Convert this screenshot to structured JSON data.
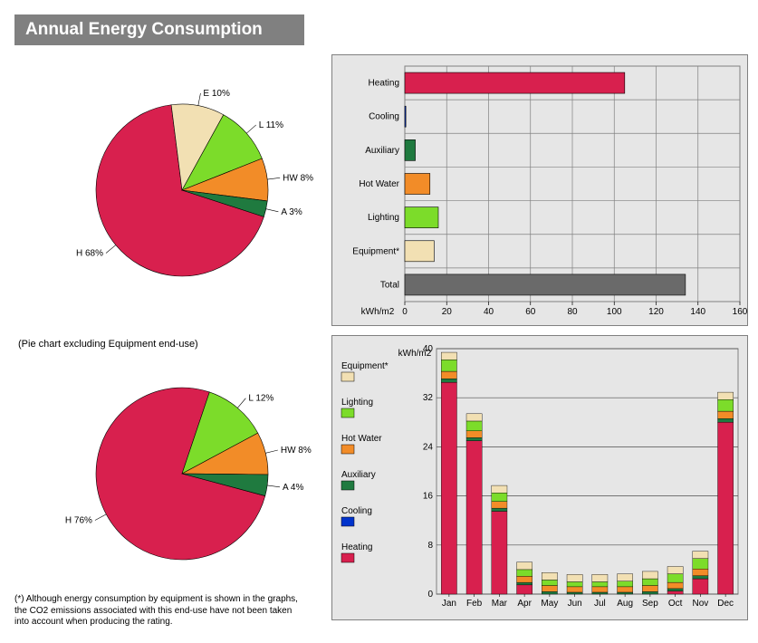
{
  "title": "Annual Energy Consumption",
  "colors": {
    "heating": "#d8204e",
    "cooling": "#0033cc",
    "auxiliary": "#1f7a3f",
    "hotwater": "#f28c28",
    "lighting": "#7cdc2a",
    "equipment": "#f2e0b3",
    "total": "#6a6a6a",
    "panel_bg": "#e6e6e6",
    "panel_border": "#808080",
    "grid_line": "#808080",
    "minor_grid": "#4f4f4f"
  },
  "pie1": {
    "labels": [
      "H 68%",
      "E 10%",
      "L 11%",
      "HW 8%",
      "A 3%"
    ],
    "values": [
      68,
      10,
      11,
      8,
      3
    ],
    "slice_colors": [
      "#d8204e",
      "#f2e0b3",
      "#7cdc2a",
      "#f28c28",
      "#1f7a3f"
    ],
    "start_angle_deg": 108
  },
  "pie2": {
    "caption": "(Pie chart excluding Equipment end-use)",
    "labels": [
      "H 76%",
      "L 12%",
      "HW 8%",
      "A 4%"
    ],
    "values": [
      76,
      12,
      8,
      4
    ],
    "slice_colors": [
      "#d8204e",
      "#7cdc2a",
      "#f28c28",
      "#1f7a3f"
    ],
    "start_angle_deg": 105
  },
  "hbar": {
    "categories": [
      "Heating",
      "Cooling",
      "Auxiliary",
      "Hot Water",
      "Lighting",
      "Equipment*",
      "Total"
    ],
    "values": [
      105,
      0.5,
      5,
      12,
      16,
      14,
      134
    ],
    "bar_colors": [
      "#d8204e",
      "#0033cc",
      "#1f7a3f",
      "#f28c28",
      "#7cdc2a",
      "#f2e0b3",
      "#6a6a6a"
    ],
    "x_axis_label": "kWh/m2",
    "x_ticks": [
      0,
      20,
      40,
      60,
      80,
      100,
      120,
      140,
      160
    ],
    "x_max": 160
  },
  "stacked": {
    "y_axis_label": "kWh/m2",
    "y_ticks": [
      0,
      8,
      16,
      24,
      32,
      40
    ],
    "y_max": 40,
    "months": [
      "Jan",
      "Feb",
      "Mar",
      "Apr",
      "May",
      "Jun",
      "Jul",
      "Aug",
      "Sep",
      "Oct",
      "Nov",
      "Dec"
    ],
    "series_order": [
      "heating",
      "cooling",
      "auxiliary",
      "hotwater",
      "lighting",
      "equipment"
    ],
    "series_colors": {
      "heating": "#d8204e",
      "cooling": "#0033cc",
      "auxiliary": "#1f7a3f",
      "hotwater": "#f28c28",
      "lighting": "#7cdc2a",
      "equipment": "#f2e0b3"
    },
    "legend": [
      {
        "label": "Equipment*",
        "color": "#f2e0b3"
      },
      {
        "label": "Lighting",
        "color": "#7cdc2a"
      },
      {
        "label": "Hot Water",
        "color": "#f28c28"
      },
      {
        "label": "Auxiliary",
        "color": "#1f7a3f"
      },
      {
        "label": "Cooling",
        "color": "#0033cc"
      },
      {
        "label": "Heating",
        "color": "#d8204e"
      }
    ],
    "data": {
      "heating": [
        34.5,
        25.0,
        13.5,
        1.5,
        0.0,
        0.0,
        0.0,
        0.0,
        0.0,
        0.5,
        2.5,
        28.0
      ],
      "cooling": [
        0.0,
        0.0,
        0.0,
        0.0,
        0.0,
        0.0,
        0.0,
        0.0,
        0.0,
        0.0,
        0.0,
        0.0
      ],
      "auxiliary": [
        0.6,
        0.5,
        0.5,
        0.4,
        0.4,
        0.3,
        0.3,
        0.3,
        0.4,
        0.4,
        0.5,
        0.6
      ],
      "hotwater": [
        1.2,
        1.1,
        1.1,
        1.0,
        1.0,
        0.9,
        0.9,
        0.9,
        1.0,
        1.0,
        1.1,
        1.2
      ],
      "lighting": [
        1.9,
        1.6,
        1.4,
        1.1,
        0.9,
        0.8,
        0.8,
        0.9,
        1.1,
        1.4,
        1.7,
        1.9
      ],
      "equipment": [
        1.2,
        1.2,
        1.2,
        1.2,
        1.2,
        1.2,
        1.2,
        1.2,
        1.2,
        1.2,
        1.2,
        1.2
      ]
    }
  },
  "footnote": "(*) Although energy consumption by equipment is shown in the graphs, the CO2 emissions associated with this end-use have not been taken into account when producing the rating."
}
